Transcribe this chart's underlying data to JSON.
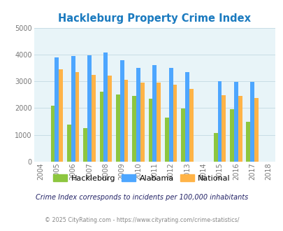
{
  "title": "Hackleburg Property Crime Index",
  "all_years": [
    2004,
    2005,
    2006,
    2007,
    2008,
    2009,
    2010,
    2011,
    2012,
    2013,
    2014,
    2015,
    2016,
    2017,
    2018
  ],
  "data_years": [
    2005,
    2006,
    2007,
    2008,
    2009,
    2010,
    2011,
    2012,
    2013,
    2015,
    2016,
    2017
  ],
  "hackleburg": [
    2100,
    1375,
    1250,
    2600,
    2500,
    2450,
    2350,
    1650,
    1975,
    1075,
    1950,
    1500
  ],
  "alabama": [
    3900,
    3950,
    3975,
    4075,
    3775,
    3500,
    3600,
    3500,
    3350,
    3000,
    2975,
    2975
  ],
  "national": [
    3450,
    3350,
    3250,
    3225,
    3050,
    2950,
    2950,
    2875,
    2725,
    2475,
    2450,
    2375
  ],
  "ylim": [
    0,
    5000
  ],
  "yticks": [
    0,
    1000,
    2000,
    3000,
    4000,
    5000
  ],
  "bar_width": 0.25,
  "hackleburg_color": "#8dc63f",
  "alabama_color": "#4da6ff",
  "national_color": "#ffb347",
  "bg_color": "#e8f4f8",
  "grid_color": "#c8dde5",
  "title_color": "#1a7abf",
  "title_fontsize": 10.5,
  "tick_fontsize": 7,
  "subtitle": "Crime Index corresponds to incidents per 100,000 inhabitants",
  "subtitle_color": "#222266",
  "footer": "© 2025 CityRating.com - https://www.cityrating.com/crime-statistics/",
  "footer_color": "#888888",
  "legend_labels": [
    "Hackleburg",
    "Alabama",
    "National"
  ]
}
